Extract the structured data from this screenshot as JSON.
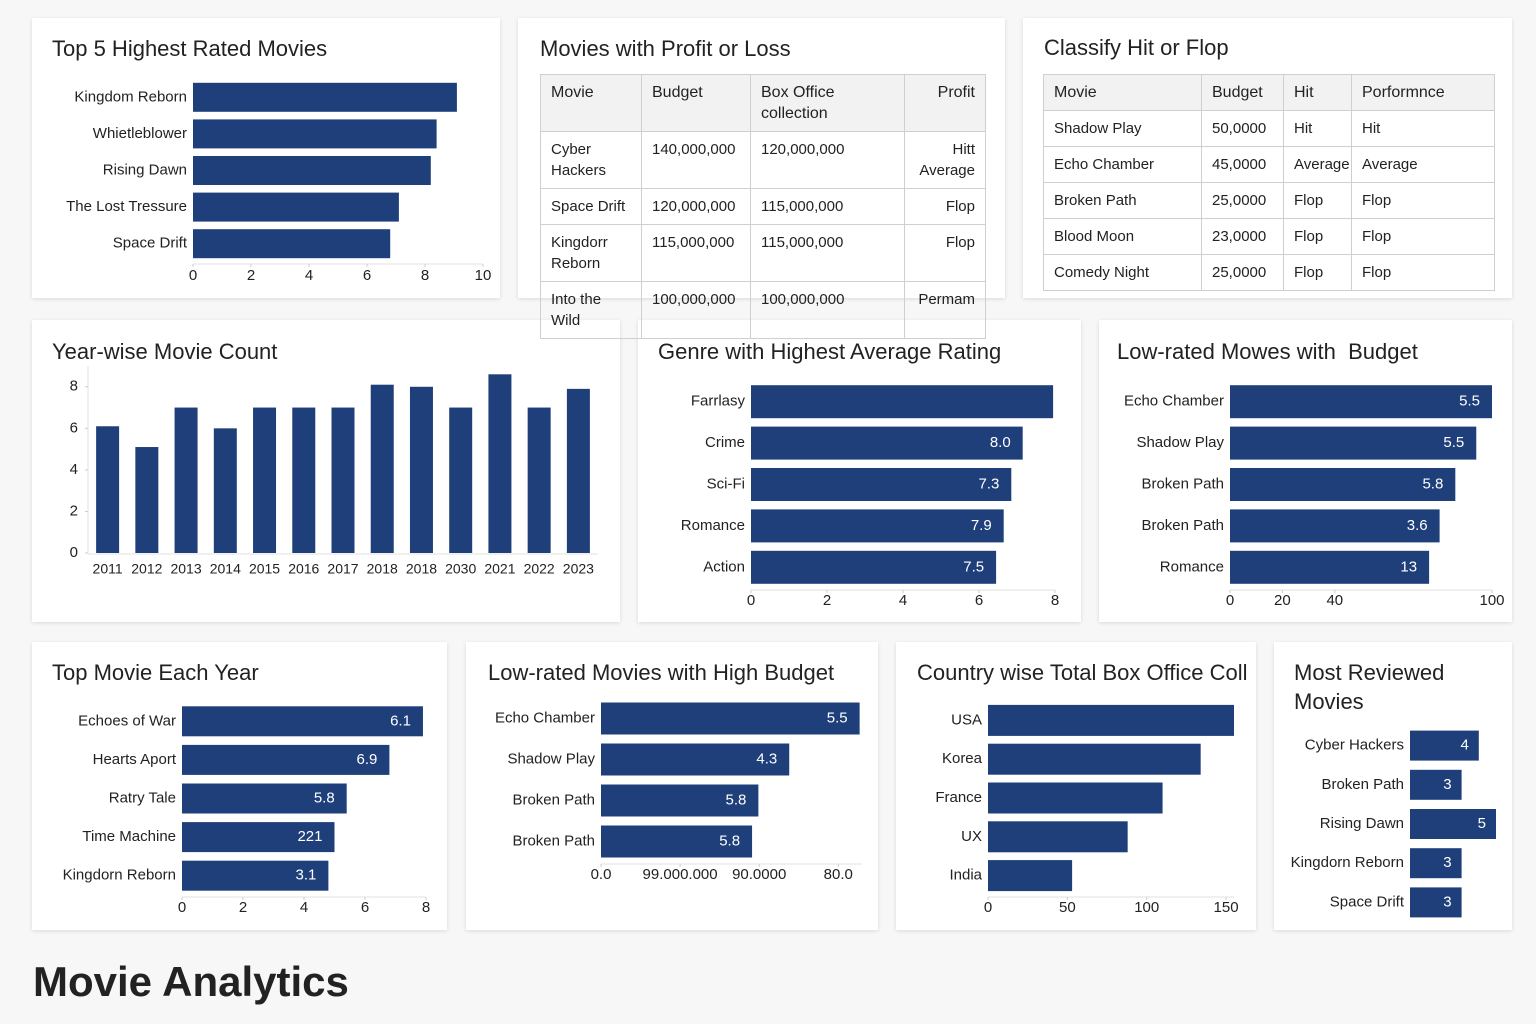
{
  "page_title": "Movie Analytics",
  "chart_data": [
    {
      "type": "barh",
      "title": "Top 5 Highest Rated Movies",
      "categories": [
        "Kingdom Reborn",
        "Whietleblower",
        "Rising Dawn",
        "The Lost Tressure",
        "Space Drift"
      ],
      "values": [
        9.1,
        8.4,
        8.2,
        7.1,
        6.8
      ],
      "color": "#1f3f7a",
      "xlim": [
        0,
        10
      ],
      "xticks": [
        0,
        2,
        4,
        6,
        8,
        10
      ]
    },
    {
      "type": "bar",
      "title": "Year-wise Movie Count",
      "categories": [
        "2011",
        "2012",
        "2013",
        "2014",
        "2015",
        "2016",
        "2017",
        "2018",
        "2018",
        "2030",
        "2021",
        "2022",
        "2023"
      ],
      "values": [
        6.1,
        5.1,
        7,
        6,
        7,
        7,
        7,
        8.1,
        8,
        7,
        8.6,
        7,
        7.9
      ],
      "color": "#1f3f7a",
      "ylim": [
        0,
        9
      ],
      "yticks": [
        0,
        2,
        4,
        6,
        8
      ]
    },
    {
      "type": "barh",
      "title": "Genre with Highest Average Rating",
      "categories": [
        "Farrlasy",
        "Crime",
        "Sci-Fi",
        "Romance",
        "Action"
      ],
      "values": [
        7.95,
        7.15,
        6.85,
        6.65,
        6.45
      ],
      "bar_labels": [
        null,
        "8.0",
        "7.3",
        "7.9",
        "7.5"
      ],
      "color": "#1f3f7a",
      "xlim": [
        0,
        8
      ],
      "xticks": [
        0,
        2,
        4,
        6,
        8
      ]
    },
    {
      "type": "barh",
      "title": "Low-rated Mowes with  Budget",
      "categories": [
        "Echo Chamber",
        "Shadow Play",
        "Broken Path",
        "Broken Path",
        "Romance"
      ],
      "values": [
        100,
        94,
        86,
        80,
        76
      ],
      "bar_labels": [
        "5.5",
        "5.5",
        "5.8",
        "3.6",
        "13"
      ],
      "color": "#1f3f7a",
      "xlim": [
        0,
        100
      ],
      "xticks": [
        0,
        20,
        40,
        100
      ]
    },
    {
      "type": "barh",
      "title": "Top Movie Each Year",
      "categories": [
        "Echoes of War",
        "Hearts Aport",
        "Ratry Tale",
        "Time Machine",
        "Kingdorn Reborn"
      ],
      "values": [
        7.9,
        6.8,
        5.4,
        5.0,
        4.8
      ],
      "bar_labels": [
        "6.1",
        "6.9",
        "5.8",
        "221",
        "3.1"
      ],
      "color": "#1f3f7a",
      "xlim": [
        0,
        8
      ],
      "xticks": [
        0,
        2,
        4,
        6,
        8
      ]
    },
    {
      "type": "barh",
      "title": "Low-rated Movies with High Budget",
      "categories": [
        "Echo Chamber",
        "Shadow Play",
        "Broken Path",
        "Broken Path"
      ],
      "values": [
        3.27,
        2.38,
        1.99,
        1.91
      ],
      "bar_labels": [
        "5.5",
        "4.3",
        "5.8",
        "5.8"
      ],
      "color": "#1f3f7a",
      "xlim": [
        0,
        3.3
      ],
      "xticks": [
        {
          "value": 0,
          "label": "0.0"
        },
        {
          "value": 1,
          "label": "99.000.000"
        },
        {
          "value": 2,
          "label": "90.0000"
        },
        {
          "value": 3,
          "label": "80.0"
        }
      ]
    },
    {
      "type": "barh",
      "title": "Country wise Total Box Office Collec",
      "categories": [
        "USA",
        "Korea",
        "France",
        "UX",
        "India"
      ],
      "values": [
        155,
        134,
        110,
        88,
        53
      ],
      "color": "#1f3f7a",
      "xlim": [
        0,
        155
      ],
      "xticks": [
        0,
        50,
        100,
        150
      ]
    },
    {
      "type": "barh",
      "title": "Most Reviewed Movies",
      "categories": [
        "Cyber Hackers",
        "Broken Path",
        "Rising Dawn",
        "Kingdorn Reborn",
        "Space Drift"
      ],
      "values": [
        4,
        3,
        5,
        3,
        3
      ],
      "color": "#1f3f7a"
    }
  ],
  "tables": [
    {
      "title": "Movies with Profit or Loss",
      "columns": [
        "Movie",
        "Budget",
        "Box Office collection",
        "Profit"
      ],
      "rows": [
        [
          "Cyber Hackers",
          "140,000,000",
          "120,000,000",
          "Hitt Average"
        ],
        [
          "Space Drift",
          "120,000,000",
          "115,000,000",
          "Flop"
        ],
        [
          "Kingdorr Reborn",
          "115,000,000",
          "115,000,000",
          "Flop"
        ],
        [
          "Into the Wild",
          "100,000,000",
          "100,000,000",
          "Permam"
        ]
      ]
    },
    {
      "title": "Classify Hit or Flop",
      "columns": [
        "Movie",
        "Budget",
        "Hit",
        "Porformnce"
      ],
      "rows": [
        [
          "Shadow Play",
          "50,0000",
          "Hit",
          "Hit"
        ],
        [
          "Echo Chamber",
          "45,0000",
          "Average",
          "Average"
        ],
        [
          "Broken Path",
          "25,0000",
          "Flop",
          "Flop"
        ],
        [
          "Blood Moon",
          "23,0000",
          "Flop",
          "Flop"
        ],
        [
          "Comedy Night",
          "25,0000",
          "Flop",
          "Flop"
        ]
      ]
    }
  ]
}
